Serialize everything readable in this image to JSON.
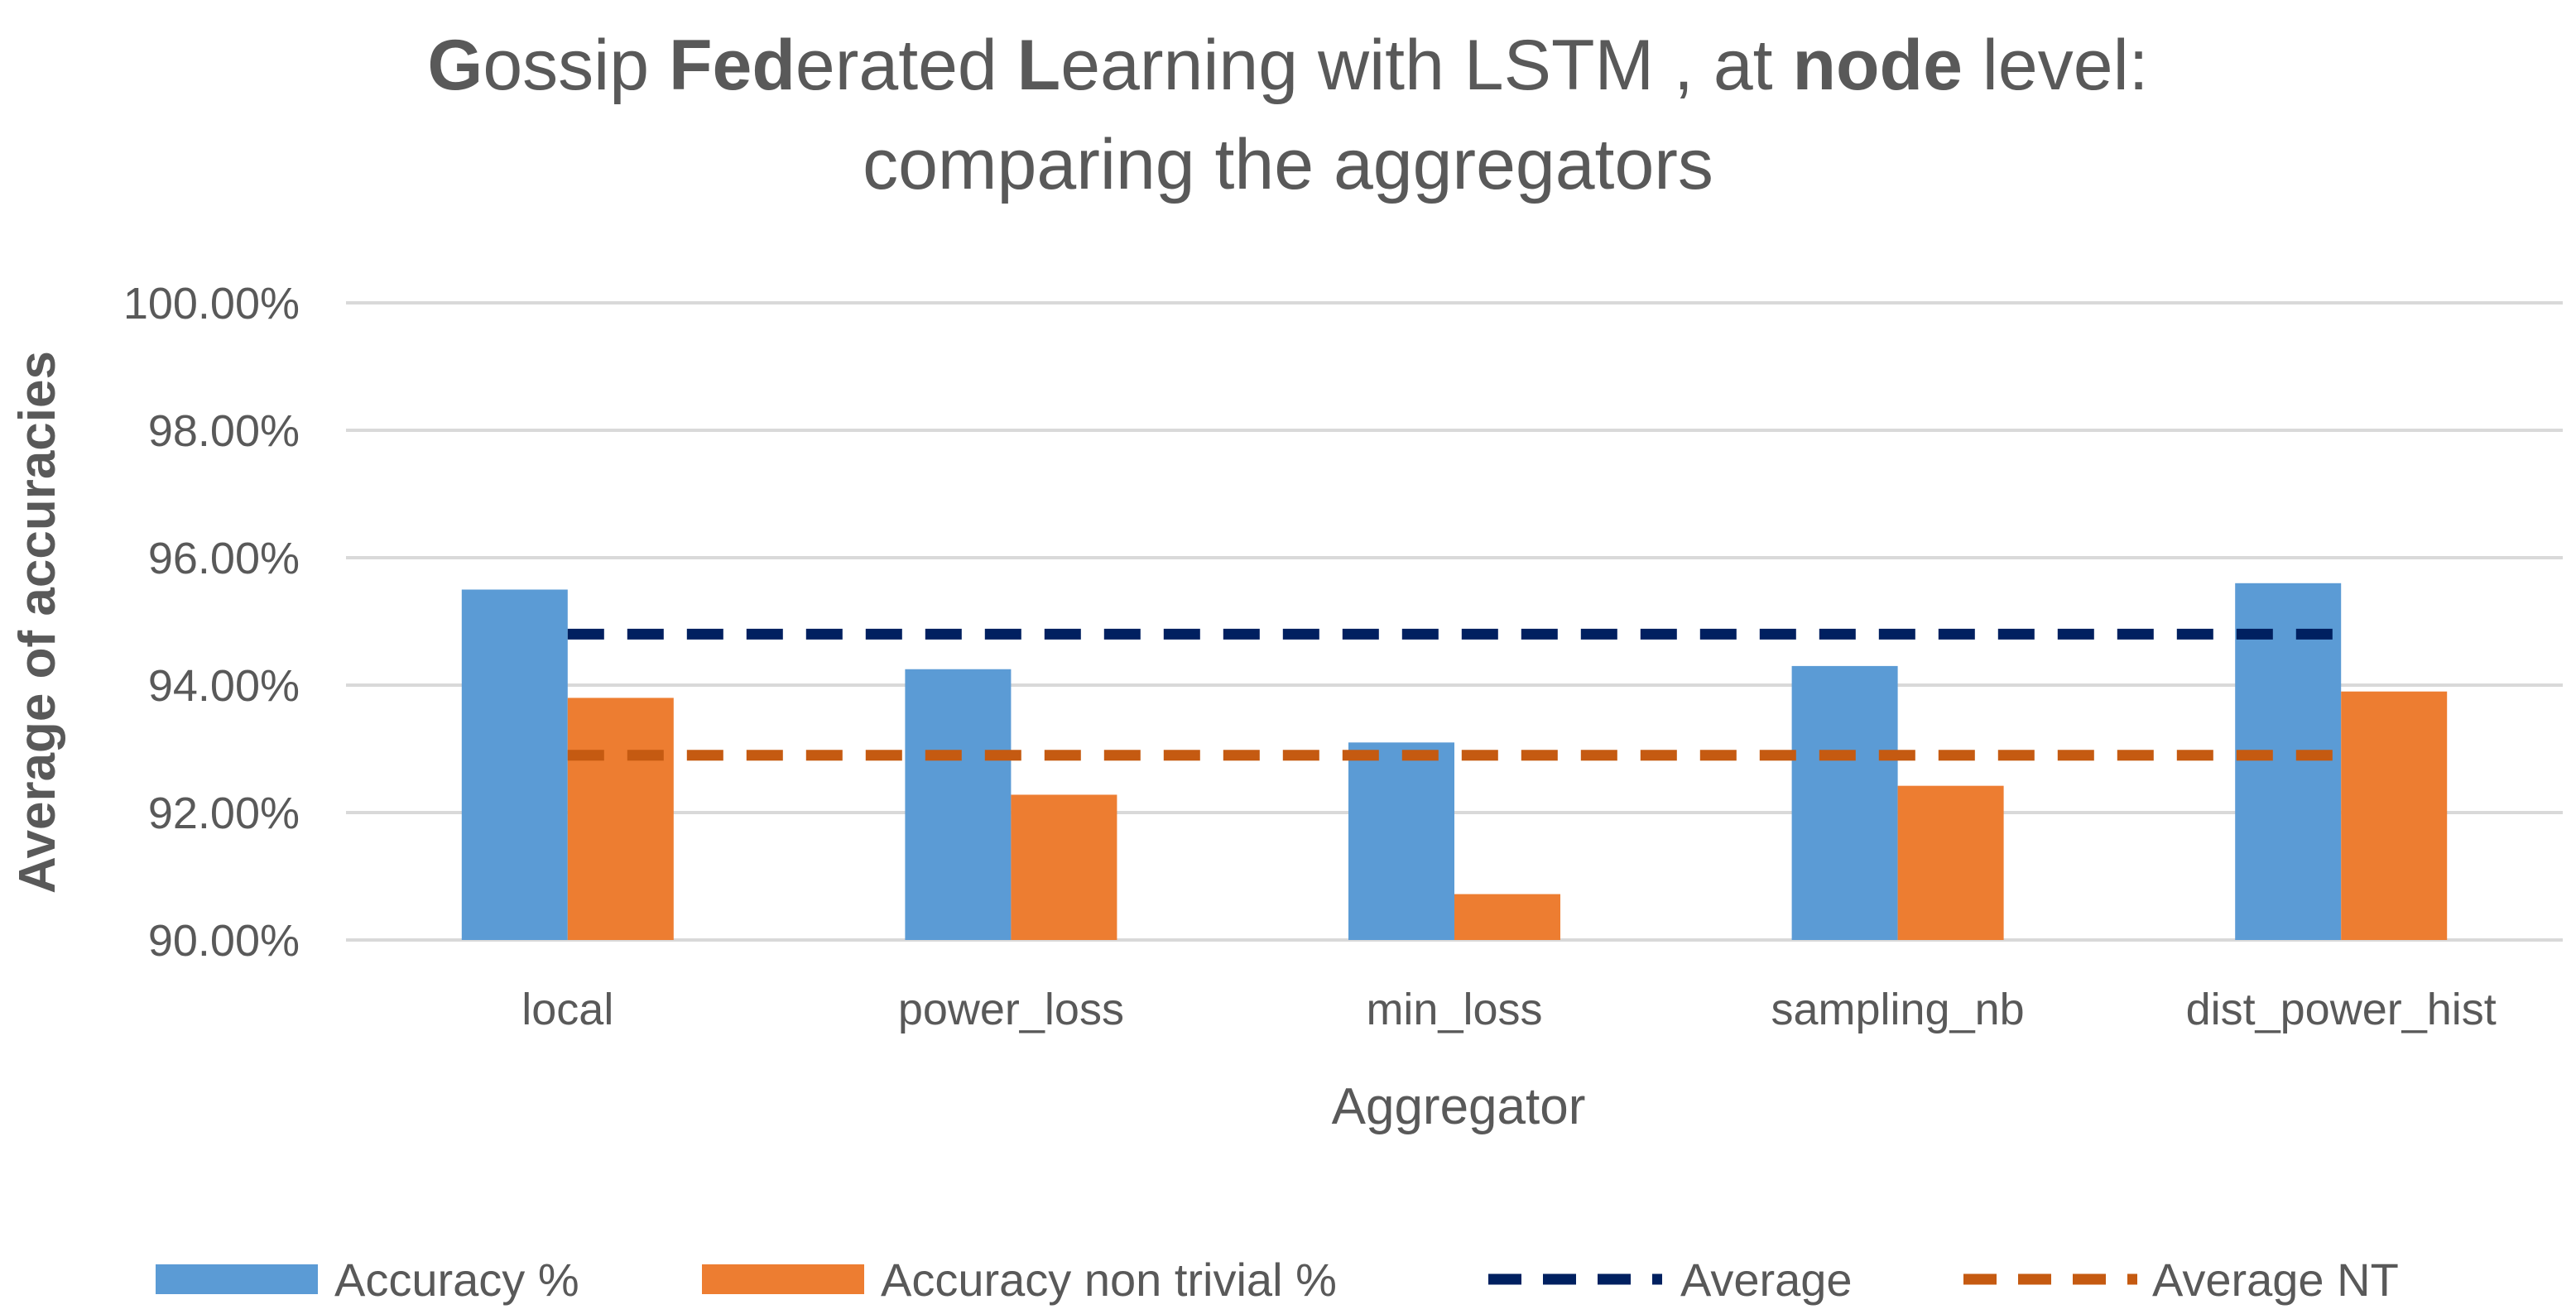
{
  "chart_data": {
    "type": "bar",
    "title": "Gossip Federated Learning with LSTM , at node level: comparing the aggregators",
    "title_parts": {
      "line1": [
        {
          "text": "G",
          "bold": true
        },
        {
          "text": "ossip ",
          "bold": false
        },
        {
          "text": "Fed",
          "bold": true
        },
        {
          "text": "erated ",
          "bold": false
        },
        {
          "text": "L",
          "bold": true
        },
        {
          "text": "earning with LSTM , at ",
          "bold": false
        },
        {
          "text": "node",
          "bold": true
        },
        {
          "text": " level:",
          "bold": false
        }
      ],
      "line2": "comparing the aggregators"
    },
    "xlabel": "Aggregator",
    "ylabel": "Average of accuracies",
    "ylim": [
      90,
      100
    ],
    "yticks": [
      90,
      92,
      94,
      96,
      98,
      100
    ],
    "ytick_labels": [
      "90.00%",
      "92.00%",
      "94.00%",
      "96.00%",
      "98.00%",
      "100.00%"
    ],
    "categories": [
      "local",
      "power_loss",
      "min_loss",
      "sampling_nb",
      "dist_power_hist"
    ],
    "series": [
      {
        "name": "Accuracy %",
        "kind": "bar",
        "color": "#5B9BD5",
        "values": [
          95.5,
          94.25,
          93.1,
          94.3,
          95.6
        ]
      },
      {
        "name": "Accuracy non trivial %",
        "kind": "bar",
        "color": "#ED7D31",
        "values": [
          93.8,
          92.28,
          90.72,
          92.42,
          93.9
        ]
      },
      {
        "name": "Average",
        "kind": "line",
        "style": "dashed",
        "color": "#002060",
        "values": [
          94.8,
          94.8,
          94.8,
          94.8,
          94.8
        ]
      },
      {
        "name": "Average NT",
        "kind": "line",
        "style": "dashed",
        "color": "#C55A11",
        "values": [
          92.9,
          92.9,
          92.9,
          92.9,
          92.9
        ]
      }
    ],
    "grid": true,
    "legend_position": "bottom"
  }
}
